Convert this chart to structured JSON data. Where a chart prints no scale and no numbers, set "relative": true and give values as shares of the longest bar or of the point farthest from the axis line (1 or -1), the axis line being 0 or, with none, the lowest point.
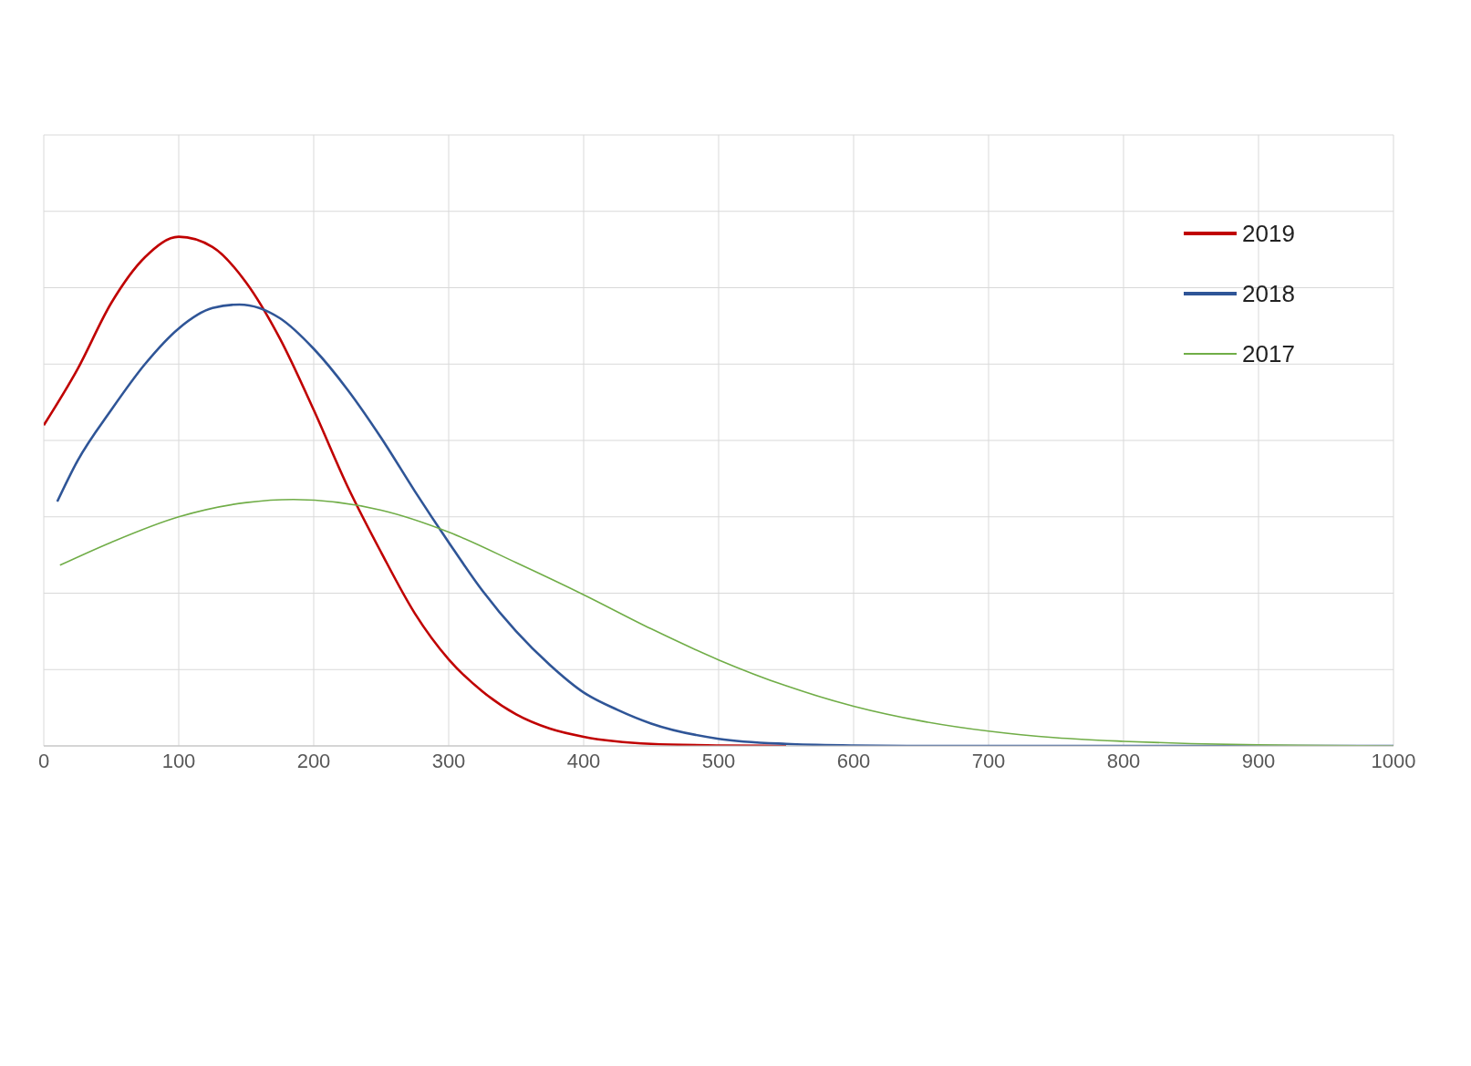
{
  "chart_data": {
    "type": "line",
    "relative": true,
    "xlim": [
      0,
      1000
    ],
    "xticks": [
      0,
      100,
      200,
      300,
      400,
      500,
      600,
      700,
      800,
      900,
      1000
    ],
    "grid": true,
    "legend": "top right",
    "marker": "none",
    "line_style": "solid",
    "series": [
      {
        "name": "2019",
        "color": "#c00000",
        "x": [
          0,
          25,
          50,
          75,
          100,
          125,
          150,
          175,
          200,
          225,
          250,
          275,
          300,
          325,
          350,
          375,
          400,
          450,
          500,
          550
        ],
        "values": [
          0.63,
          0.74,
          0.87,
          0.96,
          1.0,
          0.98,
          0.91,
          0.8,
          0.66,
          0.51,
          0.38,
          0.26,
          0.17,
          0.107,
          0.062,
          0.034,
          0.018,
          0.004,
          0.001,
          0
        ]
      },
      {
        "name": "2018",
        "color": "#2f5597",
        "x": [
          10,
          25,
          50,
          75,
          100,
          125,
          145,
          175,
          200,
          225,
          250,
          275,
          300,
          325,
          350,
          375,
          400,
          425,
          450,
          500,
          550,
          600,
          650,
          700,
          800,
          900,
          1000
        ],
        "values": [
          0.48,
          0.56,
          0.66,
          0.75,
          0.82,
          0.86,
          0.867,
          0.84,
          0.78,
          0.7,
          0.605,
          0.5,
          0.4,
          0.305,
          0.225,
          0.159,
          0.105,
          0.071,
          0.044,
          0.014,
          0.004,
          0.001,
          0,
          0,
          0,
          0,
          0
        ]
      },
      {
        "name": "2017",
        "color": "#70ad47",
        "x": [
          12,
          50,
          100,
          150,
          185,
          250,
          300,
          350,
          400,
          450,
          500,
          550,
          600,
          650,
          700,
          750,
          800,
          850,
          900,
          950,
          1000
        ],
        "values": [
          0.355,
          0.4,
          0.45,
          0.478,
          0.484,
          0.463,
          0.42,
          0.36,
          0.297,
          0.23,
          0.169,
          0.118,
          0.078,
          0.049,
          0.029,
          0.016,
          0.009,
          0.0045,
          0.002,
          0.001,
          0
        ]
      }
    ]
  }
}
